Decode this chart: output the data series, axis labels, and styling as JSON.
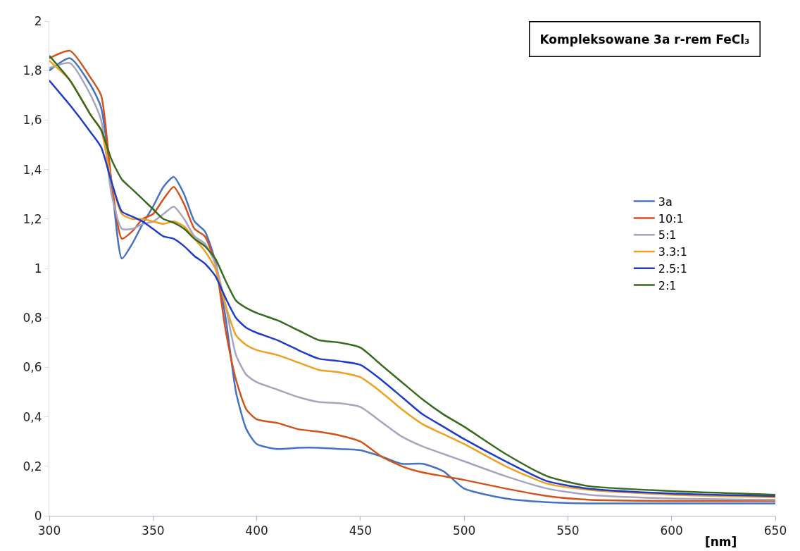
{
  "chart_data": {
    "type": "line",
    "title": "Kompleksowane 3a r-rem FeCl₃",
    "xlabel": "[nm]",
    "x": [
      300,
      310,
      320,
      325,
      330,
      335,
      340,
      345,
      350,
      355,
      360,
      365,
      370,
      375,
      380,
      385,
      390,
      395,
      400,
      410,
      420,
      430,
      440,
      450,
      460,
      470,
      480,
      490,
      500,
      520,
      540,
      560,
      600,
      650
    ],
    "xlim": [
      300,
      650
    ],
    "xticks": [
      300,
      350,
      400,
      450,
      500,
      550,
      600,
      650
    ],
    "ylim": [
      0,
      2
    ],
    "yticks": [
      0,
      {
        "value": 0.2,
        "label": "0,2"
      },
      {
        "value": 0.4,
        "label": "0,4"
      },
      {
        "value": 0.6,
        "label": "0,6"
      },
      {
        "value": 0.8,
        "label": "0,8"
      },
      1,
      {
        "value": 1.2,
        "label": "1,2"
      },
      {
        "value": 1.4,
        "label": "1,4"
      },
      {
        "value": 1.6,
        "label": "1,6"
      },
      {
        "value": 1.8,
        "label": "1,8"
      },
      2
    ],
    "legend": "right",
    "marker": "none",
    "line_style": "solid",
    "series": [
      {
        "name": "3a",
        "color": "#4472c4",
        "values": [
          1.8,
          1.85,
          1.74,
          1.65,
          1.35,
          1.04,
          1.1,
          1.18,
          1.25,
          1.33,
          1.37,
          1.3,
          1.19,
          1.15,
          1.03,
          0.8,
          0.5,
          0.35,
          0.29,
          0.27,
          0.275,
          0.275,
          0.27,
          0.265,
          0.24,
          0.21,
          0.21,
          0.18,
          0.11,
          0.07,
          0.055,
          0.05,
          0.05,
          0.05
        ]
      },
      {
        "name": "10:1",
        "color": "#d2521c",
        "values": [
          1.85,
          1.88,
          1.77,
          1.7,
          1.35,
          1.12,
          1.15,
          1.2,
          1.22,
          1.28,
          1.33,
          1.26,
          1.16,
          1.13,
          1.02,
          0.75,
          0.55,
          0.43,
          0.39,
          0.375,
          0.35,
          0.34,
          0.325,
          0.3,
          0.24,
          0.2,
          0.175,
          0.16,
          0.145,
          0.11,
          0.08,
          0.065,
          0.06,
          0.06
        ]
      },
      {
        "name": "5:1",
        "color": "#a5a5c0",
        "values": [
          1.81,
          1.83,
          1.7,
          1.6,
          1.3,
          1.16,
          1.16,
          1.18,
          1.19,
          1.22,
          1.25,
          1.2,
          1.13,
          1.1,
          1.02,
          0.85,
          0.65,
          0.57,
          0.54,
          0.51,
          0.48,
          0.46,
          0.455,
          0.44,
          0.38,
          0.32,
          0.28,
          0.25,
          0.22,
          0.16,
          0.11,
          0.085,
          0.07,
          0.065
        ]
      },
      {
        "name": "3.3:1",
        "color": "#f0a020",
        "values": [
          1.84,
          1.76,
          1.62,
          1.56,
          1.35,
          1.22,
          1.2,
          1.2,
          1.19,
          1.18,
          1.19,
          1.17,
          1.12,
          1.07,
          1.0,
          0.85,
          0.73,
          0.69,
          0.67,
          0.65,
          0.62,
          0.59,
          0.58,
          0.56,
          0.5,
          0.43,
          0.37,
          0.33,
          0.29,
          0.2,
          0.13,
          0.105,
          0.085,
          0.075
        ]
      },
      {
        "name": "2.5:1",
        "color": "#1f3cc8",
        "values": [
          1.76,
          1.66,
          1.55,
          1.49,
          1.35,
          1.23,
          1.21,
          1.19,
          1.16,
          1.13,
          1.12,
          1.09,
          1.05,
          1.02,
          0.97,
          0.88,
          0.8,
          0.76,
          0.74,
          0.71,
          0.67,
          0.635,
          0.625,
          0.61,
          0.55,
          0.48,
          0.41,
          0.36,
          0.31,
          0.22,
          0.14,
          0.11,
          0.09,
          0.08
        ]
      },
      {
        "name": "2:1",
        "color": "#3a6a1f",
        "values": [
          1.86,
          1.76,
          1.62,
          1.56,
          1.44,
          1.36,
          1.32,
          1.28,
          1.24,
          1.2,
          1.185,
          1.16,
          1.12,
          1.09,
          1.04,
          0.95,
          0.87,
          0.84,
          0.82,
          0.79,
          0.75,
          0.71,
          0.7,
          0.68,
          0.61,
          0.54,
          0.47,
          0.41,
          0.36,
          0.25,
          0.16,
          0.12,
          0.1,
          0.085
        ]
      }
    ]
  }
}
